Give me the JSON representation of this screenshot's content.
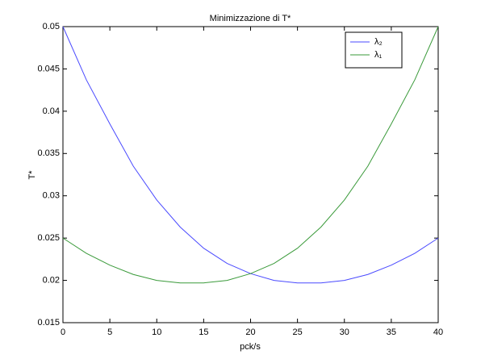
{
  "chart_data": {
    "type": "line",
    "title": "Minimizzazione di T*",
    "x_label": "pck/s",
    "y_label": "T*",
    "x": [
      0,
      2.5,
      5,
      7.5,
      10,
      12.5,
      15,
      17.5,
      20,
      22.5,
      25,
      27.5,
      30,
      32.5,
      35,
      37.5,
      40
    ],
    "series": [
      {
        "name": "λ₂",
        "color": "#4a4aff",
        "values": [
          0.05,
          0.0437,
          0.0385,
          0.0335,
          0.0295,
          0.0263,
          0.0238,
          0.022,
          0.0208,
          0.02,
          0.0197,
          0.0197,
          0.02,
          0.0207,
          0.0218,
          0.0232,
          0.025
        ]
      },
      {
        "name": "λ₁",
        "color": "#3a9a3a",
        "values": [
          0.025,
          0.0232,
          0.0218,
          0.0207,
          0.02,
          0.0197,
          0.0197,
          0.02,
          0.0208,
          0.022,
          0.0238,
          0.0263,
          0.0295,
          0.0335,
          0.0385,
          0.0437,
          0.05
        ]
      }
    ],
    "xlim": [
      0,
      40
    ],
    "xticks": [
      0,
      5,
      10,
      15,
      20,
      25,
      30,
      35,
      40
    ],
    "ylim": [
      0.015,
      0.05
    ],
    "yticks": [
      0.015,
      0.02,
      0.025,
      0.03,
      0.035,
      0.04,
      0.045,
      0.05
    ],
    "legend": "top-right"
  }
}
